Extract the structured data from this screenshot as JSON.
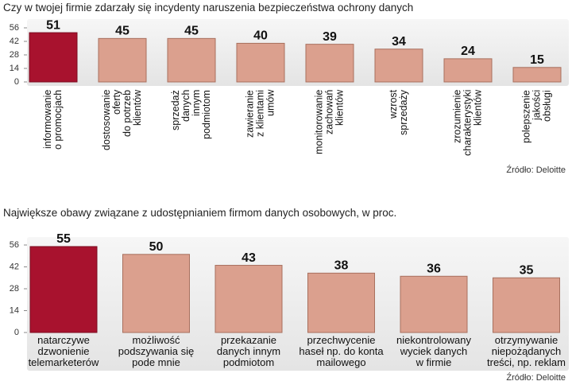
{
  "chart_data": [
    {
      "type": "bar",
      "title": "Czy w twojej firmie zdarzały się incydenty naruszenia bezpieczeństwa ochrony danych",
      "categories": [
        "informowanie\no promocjach",
        "dostosowanie\noferty\ndo potrzeb\nklientów",
        "sprzedaż\ndanych\ninnym\npodmiotom",
        "zawieranie\nz klientami\numów",
        "monitorowanie\nzachowań\nklientów",
        "wzrost\nsprzedaży",
        "zrozumienie\ncharakterystyki\nklientów",
        "polepszenie\njakości\nobsługi"
      ],
      "values": [
        51,
        45,
        45,
        40,
        39,
        34,
        24,
        15
      ],
      "colors": [
        "#a8122e",
        "#dba08e",
        "#dba08e",
        "#dba08e",
        "#dba08e",
        "#dba08e",
        "#dba08e",
        "#dba08e"
      ],
      "ylim": [
        0,
        56
      ],
      "yticks": [
        0,
        14,
        28,
        42,
        56
      ],
      "source": "Źródło: Deloitte"
    },
    {
      "type": "bar",
      "title": "Największe obawy związane z udostępnianiem firmom danych osobowych, w proc.",
      "categories": [
        "natarczywe\ndzwonienie\ntelemarketerów",
        "możliwość\npodszywania się\npode mnie",
        "przekazanie\ndanych innym\npodmiotom",
        "przechwycenie\nhaseł np. do konta\nmailowego",
        "niekontrolowany\nwyciek danych\nw firmie",
        "otrzymywanie\nniepożądanych\ntreści, np. reklam"
      ],
      "values": [
        55,
        50,
        43,
        38,
        36,
        35
      ],
      "colors": [
        "#a8122e",
        "#dba08e",
        "#dba08e",
        "#dba08e",
        "#dba08e",
        "#dba08e"
      ],
      "ylim": [
        0,
        56
      ],
      "yticks": [
        0,
        14,
        28,
        42,
        56
      ],
      "source": "Źródło: Deloitte"
    }
  ]
}
